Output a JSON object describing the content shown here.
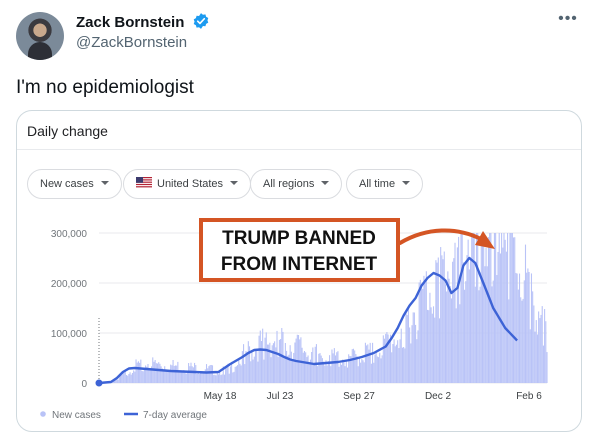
{
  "tweet": {
    "display_name": "Zack Bornstein",
    "handle": "@ZackBornstein",
    "text": "I'm no epidemiologist",
    "more_icon": "more-horizontal-icon",
    "verified_icon": "verified-badge-icon",
    "verified_color": "#1d9bf0"
  },
  "card": {
    "title": "Daily change",
    "filters": [
      {
        "label": "New cases"
      },
      {
        "label": "United States",
        "icon": "us-flag-icon"
      },
      {
        "label": "All regions"
      },
      {
        "label": "All time"
      }
    ]
  },
  "chart_data": {
    "type": "area",
    "title": "",
    "xlabel": "",
    "ylabel": "",
    "ylim": [
      0,
      300000
    ],
    "y_ticks": [
      {
        "value": 0,
        "label": "0"
      },
      {
        "value": 100000,
        "label": "100,000"
      },
      {
        "value": 200000,
        "label": "200,000"
      },
      {
        "value": 300000,
        "label": "300,000"
      }
    ],
    "x_ticks": [
      "May 18",
      "Jul 23",
      "Sep 27",
      "Dec 2",
      "Feb 6"
    ],
    "x_range_days": [
      0,
      338
    ],
    "x_tick_days": [
      86,
      152,
      218,
      284,
      350
    ],
    "series": [
      {
        "name": "New cases",
        "kind": "bars",
        "color": "#b9c3f7",
        "points": [
          [
            0,
            0
          ],
          [
            10,
            3000
          ],
          [
            20,
            12000
          ],
          [
            30,
            28000
          ],
          [
            40,
            31000
          ],
          [
            50,
            29000
          ],
          [
            60,
            27000
          ],
          [
            70,
            26000
          ],
          [
            80,
            24000
          ],
          [
            90,
            22000
          ],
          [
            100,
            20000
          ],
          [
            110,
            24000
          ],
          [
            120,
            45000
          ],
          [
            130,
            55000
          ],
          [
            140,
            67000
          ],
          [
            150,
            68000
          ],
          [
            160,
            62000
          ],
          [
            170,
            55000
          ],
          [
            180,
            48000
          ],
          [
            190,
            43000
          ],
          [
            200,
            40000
          ],
          [
            210,
            38000
          ],
          [
            220,
            45000
          ],
          [
            230,
            55000
          ],
          [
            240,
            60000
          ],
          [
            250,
            75000
          ],
          [
            260,
            105000
          ],
          [
            270,
            130000
          ],
          [
            280,
            165000
          ],
          [
            290,
            180000
          ],
          [
            300,
            200000
          ],
          [
            310,
            235000
          ],
          [
            320,
            250000
          ],
          [
            330,
            270000
          ],
          [
            335,
            300000
          ],
          [
            340,
            240000
          ],
          [
            350,
            200000
          ],
          [
            360,
            150000
          ],
          [
            370,
            110000
          ],
          [
            375,
            80000
          ]
        ]
      },
      {
        "name": "7-day average",
        "kind": "line",
        "color": "#3d63d6",
        "points": [
          [
            0,
            0
          ],
          [
            10,
            2000
          ],
          [
            15,
            10000
          ],
          [
            20,
            22000
          ],
          [
            25,
            29000
          ],
          [
            30,
            30000
          ],
          [
            40,
            28000
          ],
          [
            50,
            26000
          ],
          [
            60,
            24000
          ],
          [
            70,
            23000
          ],
          [
            80,
            22000
          ],
          [
            90,
            21000
          ],
          [
            100,
            22000
          ],
          [
            105,
            30000
          ],
          [
            110,
            38000
          ],
          [
            115,
            45000
          ],
          [
            120,
            52000
          ],
          [
            125,
            60000
          ],
          [
            130,
            66000
          ],
          [
            135,
            67000
          ],
          [
            140,
            66000
          ],
          [
            145,
            62000
          ],
          [
            150,
            58000
          ],
          [
            155,
            52000
          ],
          [
            160,
            47000
          ],
          [
            165,
            44000
          ],
          [
            170,
            42000
          ],
          [
            175,
            40000
          ],
          [
            180,
            38000
          ],
          [
            190,
            40000
          ],
          [
            200,
            42000
          ],
          [
            210,
            46000
          ],
          [
            220,
            52000
          ],
          [
            230,
            60000
          ],
          [
            240,
            73000
          ],
          [
            245,
            90000
          ],
          [
            250,
            110000
          ],
          [
            255,
            135000
          ],
          [
            260,
            155000
          ],
          [
            265,
            170000
          ],
          [
            270,
            195000
          ],
          [
            275,
            210000
          ],
          [
            280,
            220000
          ],
          [
            285,
            215000
          ],
          [
            290,
            205000
          ],
          [
            295,
            180000
          ],
          [
            300,
            190000
          ],
          [
            305,
            235000
          ],
          [
            310,
            250000
          ],
          [
            315,
            240000
          ],
          [
            320,
            210000
          ],
          [
            325,
            180000
          ],
          [
            330,
            150000
          ],
          [
            340,
            110000
          ],
          [
            350,
            85000
          ]
        ]
      }
    ],
    "annotation": {
      "text_line1": "TRUMP BANNED",
      "text_line2": "FROM INTERNET",
      "box_color": "#d45524",
      "arrow_color": "#d45524"
    },
    "grid": true,
    "legend": "bottom-left"
  }
}
